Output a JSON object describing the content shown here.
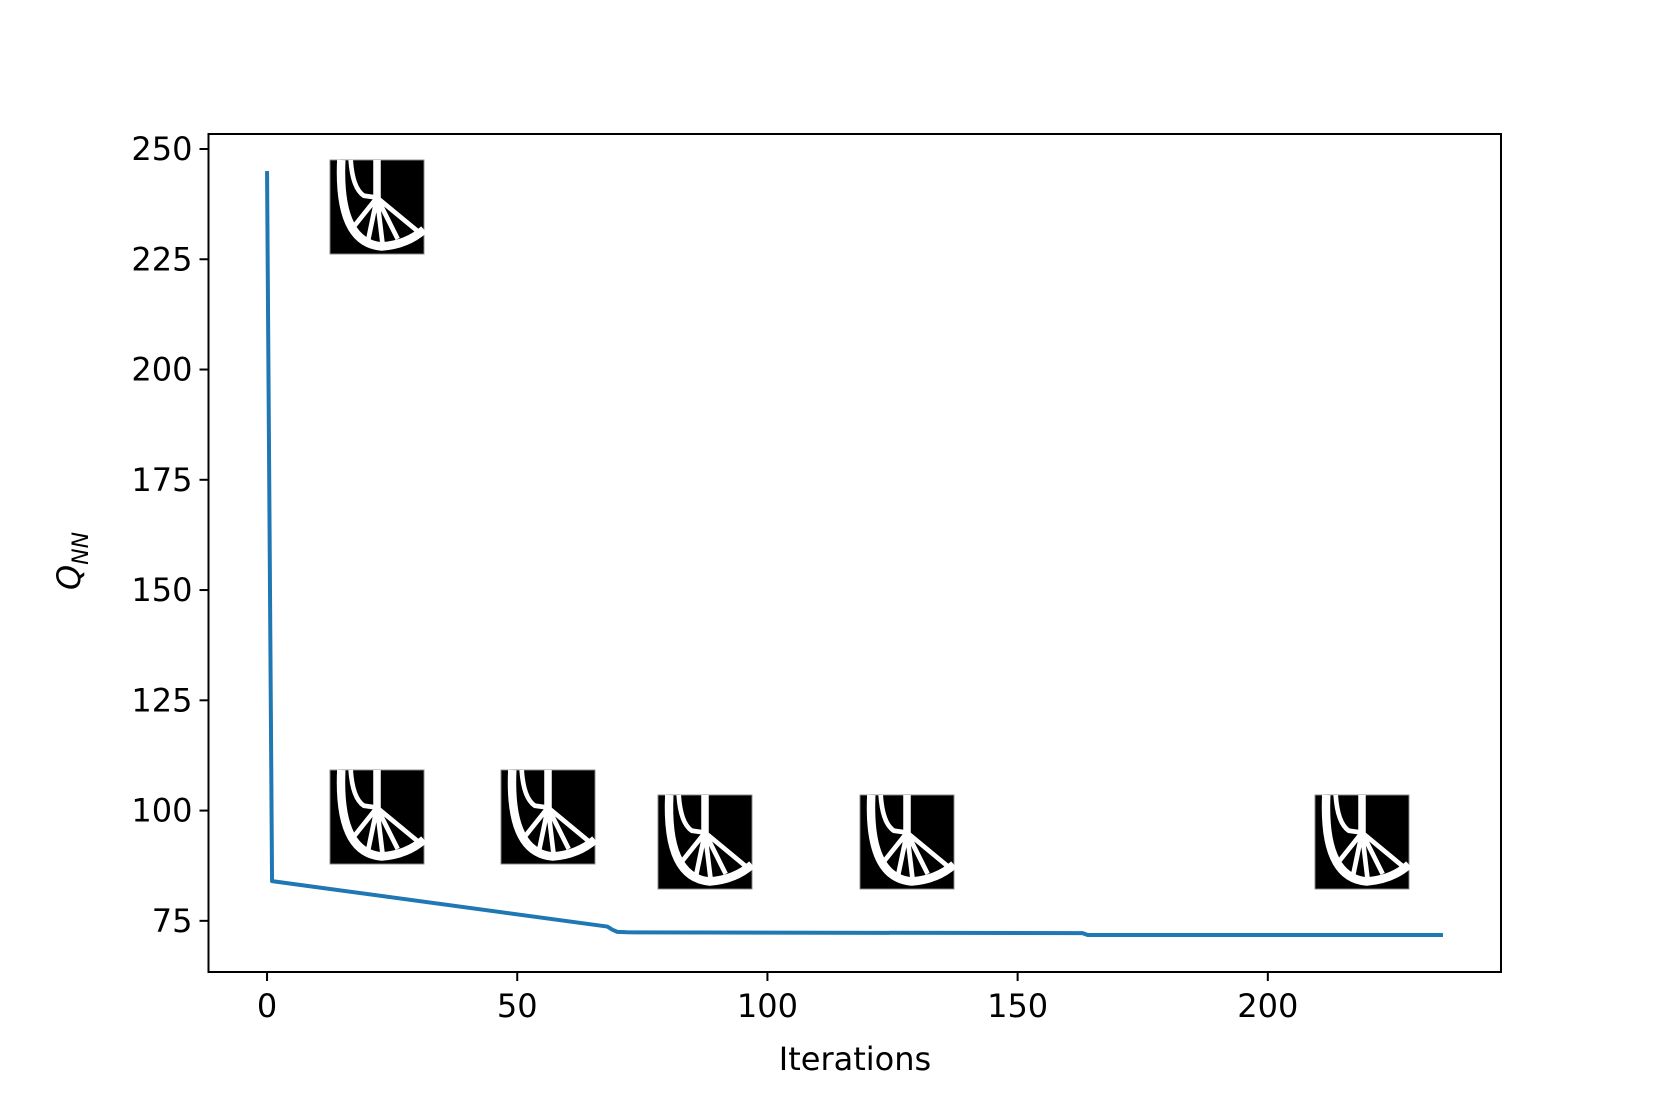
{
  "chart_data": {
    "type": "line",
    "x_label": "Iterations",
    "y_label": {
      "main": "Q",
      "sub": "NN"
    },
    "x": [
      0,
      1,
      68,
      69,
      70,
      72,
      163,
      164,
      235
    ],
    "series": [
      {
        "color": "#1f77b4",
        "values": [
          245,
          84,
          73.7,
          73,
          72.5,
          72.4,
          72.2,
          71.8,
          71.8
        ]
      }
    ],
    "xlim": [
      -11.7,
      246.6
    ],
    "xticks": [
      0,
      50,
      100,
      150,
      200
    ],
    "ylim": [
      63.4,
      253.4
    ],
    "yticks": [
      75,
      100,
      125,
      150,
      175,
      200,
      225,
      250
    ],
    "grid": false
  }
}
